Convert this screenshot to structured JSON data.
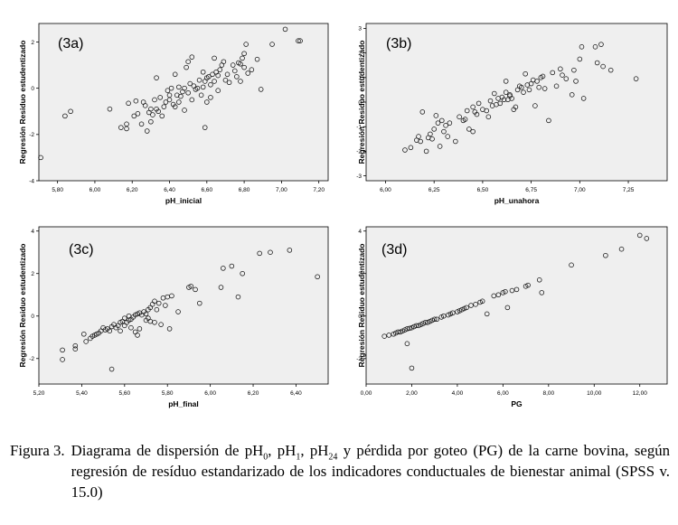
{
  "ylabel": "Regresión Residuo estudentizado",
  "caption": {
    "label": "Figura 3.",
    "parts": [
      {
        "t": "Diagrama de dispersión de pH"
      },
      {
        "sub": "0"
      },
      {
        "t": ", pH"
      },
      {
        "sub": "1"
      },
      {
        "t": ", pH"
      },
      {
        "sub": "24"
      },
      {
        "t": " y pérdida por goteo (PG) de la carne bovina, según regresión de resíduo estandarizado de los indicadores conductuales de bienestar animal (SPSS v. 15.0)"
      }
    ]
  },
  "chart_data": [
    {
      "panel": "3a",
      "type": "scatter",
      "tag": "(3a)",
      "xlabel": "pH_inicial",
      "ylabel": "Regresión Residuo estudentizado",
      "x_ticks": [
        "5,80",
        "6,00",
        "6,20",
        "6,40",
        "6,60",
        "6,80",
        "7,00",
        "7,20"
      ],
      "y_ticks": [
        "-4",
        "-2",
        "0",
        "2"
      ],
      "xlim": [
        5.7,
        7.25
      ],
      "ylim": [
        -4,
        2.8
      ],
      "grid": false,
      "points": [
        [
          5.71,
          -3.0
        ],
        [
          5.84,
          -1.2
        ],
        [
          5.87,
          -1.0
        ],
        [
          6.08,
          -0.9
        ],
        [
          6.14,
          -1.7
        ],
        [
          6.17,
          -1.75
        ],
        [
          6.17,
          -1.55
        ],
        [
          6.18,
          -0.65
        ],
        [
          6.21,
          -1.2
        ],
        [
          6.22,
          -0.55
        ],
        [
          6.23,
          -1.1
        ],
        [
          6.25,
          -1.55
        ],
        [
          6.26,
          -0.6
        ],
        [
          6.27,
          -0.75
        ],
        [
          6.28,
          -1.85
        ],
        [
          6.29,
          -1.05
        ],
        [
          6.3,
          -1.45
        ],
        [
          6.3,
          -0.9
        ],
        [
          6.31,
          -1.15
        ],
        [
          6.32,
          -0.5
        ],
        [
          6.33,
          -0.9
        ],
        [
          6.33,
          0.45
        ],
        [
          6.34,
          -1.0
        ],
        [
          6.35,
          -0.4
        ],
        [
          6.36,
          -1.2
        ],
        [
          6.37,
          -0.8
        ],
        [
          6.38,
          -0.6
        ],
        [
          6.39,
          -0.1
        ],
        [
          6.4,
          -0.5
        ],
        [
          6.4,
          -0.3
        ],
        [
          6.41,
          0.0
        ],
        [
          6.42,
          -0.7
        ],
        [
          6.43,
          -0.8
        ],
        [
          6.43,
          0.6
        ],
        [
          6.44,
          -0.3
        ],
        [
          6.45,
          -0.6
        ],
        [
          6.45,
          0.05
        ],
        [
          6.46,
          -0.35
        ],
        [
          6.47,
          -0.15
        ],
        [
          6.48,
          0.0
        ],
        [
          6.48,
          -0.95
        ],
        [
          6.49,
          0.9
        ],
        [
          6.5,
          1.15
        ],
        [
          6.5,
          -0.2
        ],
        [
          6.51,
          0.2
        ],
        [
          6.52,
          1.35
        ],
        [
          6.52,
          -0.5
        ],
        [
          6.53,
          0.1
        ],
        [
          6.54,
          -0.05
        ],
        [
          6.55,
          0.0
        ],
        [
          6.56,
          0.35
        ],
        [
          6.57,
          -0.3
        ],
        [
          6.58,
          0.7
        ],
        [
          6.58,
          0.05
        ],
        [
          6.59,
          0.3
        ],
        [
          6.59,
          -1.7
        ],
        [
          6.6,
          0.45
        ],
        [
          6.6,
          -0.6
        ],
        [
          6.61,
          0.5
        ],
        [
          6.62,
          0.15
        ],
        [
          6.62,
          -0.4
        ],
        [
          6.63,
          0.6
        ],
        [
          6.64,
          0.3
        ],
        [
          6.64,
          1.3
        ],
        [
          6.65,
          0.7
        ],
        [
          6.66,
          0.55
        ],
        [
          6.66,
          -0.1
        ],
        [
          6.67,
          0.8
        ],
        [
          6.68,
          1.0
        ],
        [
          6.69,
          1.15
        ],
        [
          6.7,
          0.35
        ],
        [
          6.71,
          0.6
        ],
        [
          6.72,
          0.25
        ],
        [
          6.74,
          1.0
        ],
        [
          6.75,
          0.75
        ],
        [
          6.76,
          0.5
        ],
        [
          6.77,
          1.1
        ],
        [
          6.78,
          1.05
        ],
        [
          6.78,
          0.3
        ],
        [
          6.79,
          1.3
        ],
        [
          6.8,
          1.5
        ],
        [
          6.8,
          0.9
        ],
        [
          6.81,
          1.9
        ],
        [
          6.82,
          0.65
        ],
        [
          6.84,
          0.8
        ],
        [
          6.87,
          1.25
        ],
        [
          6.89,
          -0.05
        ],
        [
          6.95,
          1.9
        ],
        [
          7.02,
          2.55
        ],
        [
          7.09,
          2.05
        ],
        [
          7.1,
          2.05
        ]
      ]
    },
    {
      "panel": "3b",
      "type": "scatter",
      "tag": "(3b)",
      "xlabel": "pH_unahora",
      "ylabel": "Regresión Residuo estudentizado",
      "x_ticks": [
        "6,00",
        "6,25",
        "6,50",
        "6,75",
        "7,00",
        "7,25"
      ],
      "y_ticks": [
        "-3",
        "-2",
        "-1",
        "0",
        "1",
        "2",
        "3"
      ],
      "xlim": [
        5.9,
        7.45
      ],
      "ylim": [
        -3.2,
        3.2
      ],
      "grid": false,
      "points": [
        [
          6.1,
          -1.95
        ],
        [
          6.13,
          -1.85
        ],
        [
          6.16,
          -1.55
        ],
        [
          6.17,
          -1.4
        ],
        [
          6.18,
          -1.6
        ],
        [
          6.19,
          -0.4
        ],
        [
          6.21,
          -2.0
        ],
        [
          6.22,
          -1.45
        ],
        [
          6.23,
          -1.3
        ],
        [
          6.24,
          -1.5
        ],
        [
          6.25,
          -1.1
        ],
        [
          6.26,
          -0.55
        ],
        [
          6.27,
          -0.85
        ],
        [
          6.28,
          -1.8
        ],
        [
          6.29,
          -0.75
        ],
        [
          6.3,
          -1.2
        ],
        [
          6.31,
          -0.95
        ],
        [
          6.32,
          -1.4
        ],
        [
          6.33,
          -0.85
        ],
        [
          6.36,
          -1.6
        ],
        [
          6.38,
          -0.6
        ],
        [
          6.4,
          -0.75
        ],
        [
          6.41,
          -0.7
        ],
        [
          6.42,
          -0.35
        ],
        [
          6.43,
          -1.1
        ],
        [
          6.45,
          -1.2
        ],
        [
          6.45,
          -0.2
        ],
        [
          6.46,
          -0.4
        ],
        [
          6.47,
          -0.5
        ],
        [
          6.48,
          -0.05
        ],
        [
          6.5,
          -0.3
        ],
        [
          6.52,
          -0.35
        ],
        [
          6.53,
          -0.6
        ],
        [
          6.54,
          0.05
        ],
        [
          6.55,
          -0.15
        ],
        [
          6.56,
          0.35
        ],
        [
          6.57,
          -0.1
        ],
        [
          6.58,
          0.15
        ],
        [
          6.59,
          -0.05
        ],
        [
          6.6,
          0.2
        ],
        [
          6.61,
          0.1
        ],
        [
          6.62,
          0.4
        ],
        [
          6.62,
          0.85
        ],
        [
          6.63,
          0.1
        ],
        [
          6.64,
          0.3
        ],
        [
          6.64,
          0.25
        ],
        [
          6.65,
          0.15
        ],
        [
          6.66,
          -0.3
        ],
        [
          6.67,
          -0.2
        ],
        [
          6.68,
          0.5
        ],
        [
          6.69,
          0.65
        ],
        [
          6.7,
          0.6
        ],
        [
          6.71,
          0.4
        ],
        [
          6.72,
          1.15
        ],
        [
          6.73,
          0.7
        ],
        [
          6.74,
          0.5
        ],
        [
          6.75,
          0.75
        ],
        [
          6.76,
          0.9
        ],
        [
          6.77,
          -0.15
        ],
        [
          6.78,
          0.85
        ],
        [
          6.79,
          0.6
        ],
        [
          6.8,
          1.0
        ],
        [
          6.81,
          1.05
        ],
        [
          6.82,
          0.55
        ],
        [
          6.84,
          -0.75
        ],
        [
          6.86,
          1.2
        ],
        [
          6.88,
          0.65
        ],
        [
          6.9,
          1.35
        ],
        [
          6.91,
          1.1
        ],
        [
          6.93,
          0.95
        ],
        [
          6.96,
          0.3
        ],
        [
          6.97,
          1.3
        ],
        [
          6.98,
          0.85
        ],
        [
          7.0,
          1.75
        ],
        [
          7.01,
          2.25
        ],
        [
          7.02,
          0.15
        ],
        [
          7.08,
          2.25
        ],
        [
          7.09,
          1.6
        ],
        [
          7.11,
          2.35
        ],
        [
          7.12,
          1.45
        ],
        [
          7.16,
          1.3
        ],
        [
          7.29,
          0.95
        ]
      ]
    },
    {
      "panel": "3c",
      "type": "scatter",
      "tag": "(3c)",
      "xlabel": "pH_final",
      "ylabel": "Regresión Residuo estudentizado",
      "x_ticks": [
        "5,20",
        "5,40",
        "5,60",
        "5,80",
        "6,00",
        "6,20",
        "6,40"
      ],
      "y_ticks": [
        "-2",
        "0",
        "2",
        "4"
      ],
      "xlim": [
        5.2,
        6.55
      ],
      "ylim": [
        -3.2,
        4.2
      ],
      "grid": false,
      "points": [
        [
          5.31,
          -2.05
        ],
        [
          5.31,
          -1.6
        ],
        [
          5.37,
          -1.55
        ],
        [
          5.37,
          -1.4
        ],
        [
          5.41,
          -0.85
        ],
        [
          5.42,
          -1.2
        ],
        [
          5.44,
          -1.05
        ],
        [
          5.45,
          -0.95
        ],
        [
          5.46,
          -0.9
        ],
        [
          5.47,
          -0.85
        ],
        [
          5.48,
          -0.8
        ],
        [
          5.49,
          -0.7
        ],
        [
          5.5,
          -0.55
        ],
        [
          5.51,
          -0.65
        ],
        [
          5.52,
          -0.6
        ],
        [
          5.53,
          -0.7
        ],
        [
          5.54,
          -2.5
        ],
        [
          5.54,
          -0.5
        ],
        [
          5.55,
          -0.4
        ],
        [
          5.56,
          -0.55
        ],
        [
          5.57,
          -0.45
        ],
        [
          5.58,
          -0.3
        ],
        [
          5.58,
          -0.7
        ],
        [
          5.59,
          -0.25
        ],
        [
          5.6,
          -0.45
        ],
        [
          5.6,
          -0.1
        ],
        [
          5.61,
          -0.3
        ],
        [
          5.62,
          -0.2
        ],
        [
          5.62,
          0.0
        ],
        [
          5.63,
          -0.15
        ],
        [
          5.63,
          -0.55
        ],
        [
          5.64,
          -0.05
        ],
        [
          5.65,
          0.05
        ],
        [
          5.65,
          -0.75
        ],
        [
          5.66,
          0.1
        ],
        [
          5.66,
          -0.9
        ],
        [
          5.67,
          -0.6
        ],
        [
          5.67,
          0.15
        ],
        [
          5.68,
          0.05
        ],
        [
          5.69,
          0.2
        ],
        [
          5.7,
          0.1
        ],
        [
          5.7,
          -0.2
        ],
        [
          5.71,
          0.3
        ],
        [
          5.71,
          -0.1
        ],
        [
          5.72,
          0.4
        ],
        [
          5.72,
          -0.25
        ],
        [
          5.73,
          0.55
        ],
        [
          5.74,
          -0.3
        ],
        [
          5.74,
          0.7
        ],
        [
          5.75,
          0.3
        ],
        [
          5.76,
          0.6
        ],
        [
          5.77,
          -0.4
        ],
        [
          5.78,
          0.85
        ],
        [
          5.79,
          0.5
        ],
        [
          5.8,
          0.9
        ],
        [
          5.81,
          -0.6
        ],
        [
          5.82,
          0.95
        ],
        [
          5.85,
          0.2
        ],
        [
          5.9,
          1.35
        ],
        [
          5.91,
          1.4
        ],
        [
          5.93,
          1.25
        ],
        [
          5.95,
          0.6
        ],
        [
          6.05,
          1.35
        ],
        [
          6.06,
          2.25
        ],
        [
          6.1,
          2.35
        ],
        [
          6.13,
          0.9
        ],
        [
          6.15,
          2.0
        ],
        [
          6.23,
          2.95
        ],
        [
          6.28,
          3.0
        ],
        [
          6.37,
          3.1
        ],
        [
          6.5,
          1.85
        ]
      ]
    },
    {
      "panel": "3d",
      "type": "scatter",
      "tag": "(3d)",
      "xlabel": "PG",
      "ylabel": "Regresión Residuo estudentizado",
      "x_ticks": [
        "0,00",
        "2,00",
        "4,00",
        "6,00",
        "8,00",
        "10,00",
        "12,00"
      ],
      "y_ticks": [
        "-2",
        "0",
        "2",
        "4"
      ],
      "xlim": [
        0,
        13.2
      ],
      "ylim": [
        -3.2,
        4.2
      ],
      "grid": false,
      "points": [
        [
          0.8,
          -0.95
        ],
        [
          1.0,
          -0.9
        ],
        [
          1.2,
          -0.85
        ],
        [
          1.3,
          -0.8
        ],
        [
          1.4,
          -0.75
        ],
        [
          1.5,
          -0.75
        ],
        [
          1.6,
          -0.7
        ],
        [
          1.7,
          -0.65
        ],
        [
          1.8,
          -1.3
        ],
        [
          1.8,
          -0.6
        ],
        [
          1.9,
          -0.58
        ],
        [
          2.0,
          -2.45
        ],
        [
          2.0,
          -0.55
        ],
        [
          2.1,
          -0.5
        ],
        [
          2.2,
          -0.45
        ],
        [
          2.3,
          -0.45
        ],
        [
          2.4,
          -0.4
        ],
        [
          2.5,
          -0.35
        ],
        [
          2.6,
          -0.3
        ],
        [
          2.7,
          -0.3
        ],
        [
          2.8,
          -0.25
        ],
        [
          2.9,
          -0.2
        ],
        [
          3.0,
          -0.15
        ],
        [
          3.1,
          -0.15
        ],
        [
          3.3,
          -0.05
        ],
        [
          3.4,
          0.0
        ],
        [
          3.6,
          0.05
        ],
        [
          3.7,
          0.1
        ],
        [
          3.8,
          0.15
        ],
        [
          4.0,
          0.2
        ],
        [
          4.1,
          0.25
        ],
        [
          4.2,
          0.3
        ],
        [
          4.3,
          0.35
        ],
        [
          4.4,
          0.4
        ],
        [
          4.6,
          0.5
        ],
        [
          4.8,
          0.55
        ],
        [
          5.0,
          0.65
        ],
        [
          5.1,
          0.7
        ],
        [
          5.3,
          0.1
        ],
        [
          5.6,
          0.95
        ],
        [
          5.8,
          1.0
        ],
        [
          6.0,
          1.1
        ],
        [
          6.1,
          1.15
        ],
        [
          6.2,
          0.4
        ],
        [
          6.4,
          1.2
        ],
        [
          6.6,
          1.25
        ],
        [
          7.0,
          1.4
        ],
        [
          7.1,
          1.45
        ],
        [
          7.6,
          1.7
        ],
        [
          7.7,
          1.1
        ],
        [
          9.0,
          2.4
        ],
        [
          10.5,
          2.85
        ],
        [
          11.2,
          3.15
        ],
        [
          12.0,
          3.8
        ],
        [
          12.3,
          3.65
        ]
      ]
    }
  ]
}
